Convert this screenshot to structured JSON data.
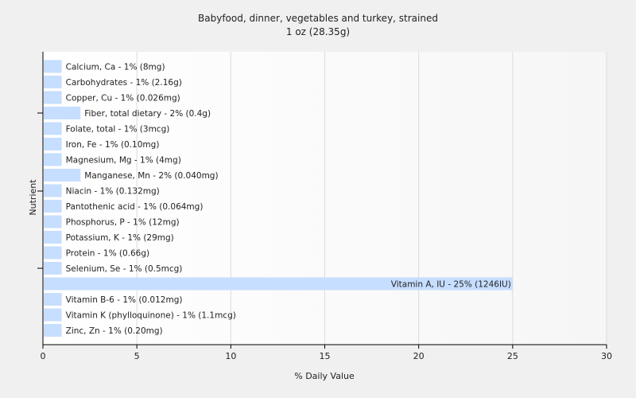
{
  "chart_data": {
    "type": "bar",
    "orientation": "horizontal",
    "title": "Babyfood, dinner, vegetables and turkey, strained",
    "subtitle": "1 oz (28.35g)",
    "xlabel": "% Daily Value",
    "ylabel": "Nutrient",
    "xlim": [
      0,
      30
    ],
    "xticks": [
      0,
      5,
      10,
      15,
      20,
      25,
      30
    ],
    "grid": true,
    "bar_color": "#c6deff",
    "categories": [
      "Calcium, Ca",
      "Carbohydrates",
      "Copper, Cu",
      "Fiber, total dietary",
      "Folate, total",
      "Iron, Fe",
      "Magnesium, Mg",
      "Manganese, Mn",
      "Niacin",
      "Pantothenic acid",
      "Phosphorus, P",
      "Potassium, K",
      "Protein",
      "Selenium, Se",
      "Vitamin A, IU",
      "Vitamin B-6",
      "Vitamin K (phylloquinone)",
      "Zinc, Zn"
    ],
    "values": [
      1,
      1,
      1,
      2,
      1,
      1,
      1,
      2,
      1,
      1,
      1,
      1,
      1,
      1,
      25,
      1,
      1,
      1
    ],
    "labels": [
      "Calcium, Ca - 1% (8mg)",
      "Carbohydrates - 1% (2.16g)",
      "Copper, Cu - 1% (0.026mg)",
      "Fiber, total dietary - 2% (0.4g)",
      "Folate, total - 1% (3mcg)",
      "Iron, Fe - 1% (0.10mg)",
      "Magnesium, Mg - 1% (4mg)",
      "Manganese, Mn - 2% (0.040mg)",
      "Niacin - 1% (0.132mg)",
      "Pantothenic acid - 1% (0.064mg)",
      "Phosphorus, P - 1% (12mg)",
      "Potassium, K - 1% (29mg)",
      "Protein - 1% (0.66g)",
      "Selenium, Se - 1% (0.5mcg)",
      "Vitamin A, IU - 25% (1246IU)",
      "Vitamin B-6 - 1% (0.012mg)",
      "Vitamin K (phylloquinone) - 1% (1.1mcg)",
      "Zinc, Zn - 1% (0.20mg)"
    ]
  }
}
